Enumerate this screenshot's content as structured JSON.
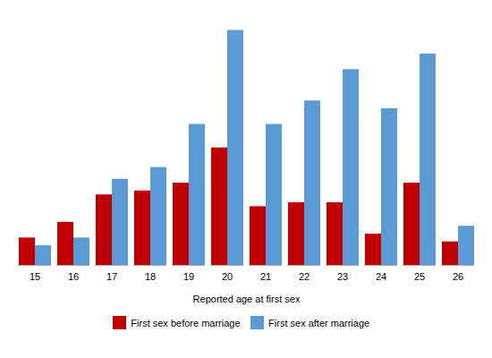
{
  "chart_data": {
    "type": "bar",
    "xlabel": "Reported age at first sex",
    "categories": [
      15,
      16,
      17,
      18,
      19,
      20,
      21,
      22,
      23,
      24,
      25,
      26
    ],
    "series": [
      {
        "name": "First sex before marriage",
        "color": "#C00000",
        "values": [
          3.5,
          5.5,
          9,
          9.5,
          10.5,
          15,
          7.5,
          8,
          8,
          4,
          10.5,
          3
        ]
      },
      {
        "name": "First sex after marriage",
        "color": "#5B9BD5",
        "values": [
          2.5,
          3.5,
          11,
          12.5,
          18,
          30,
          18,
          21,
          25,
          20,
          27,
          5
        ]
      }
    ],
    "ylim": [
      0,
      32
    ],
    "grid": false,
    "tick_labels": "x",
    "legend": "bottom"
  }
}
